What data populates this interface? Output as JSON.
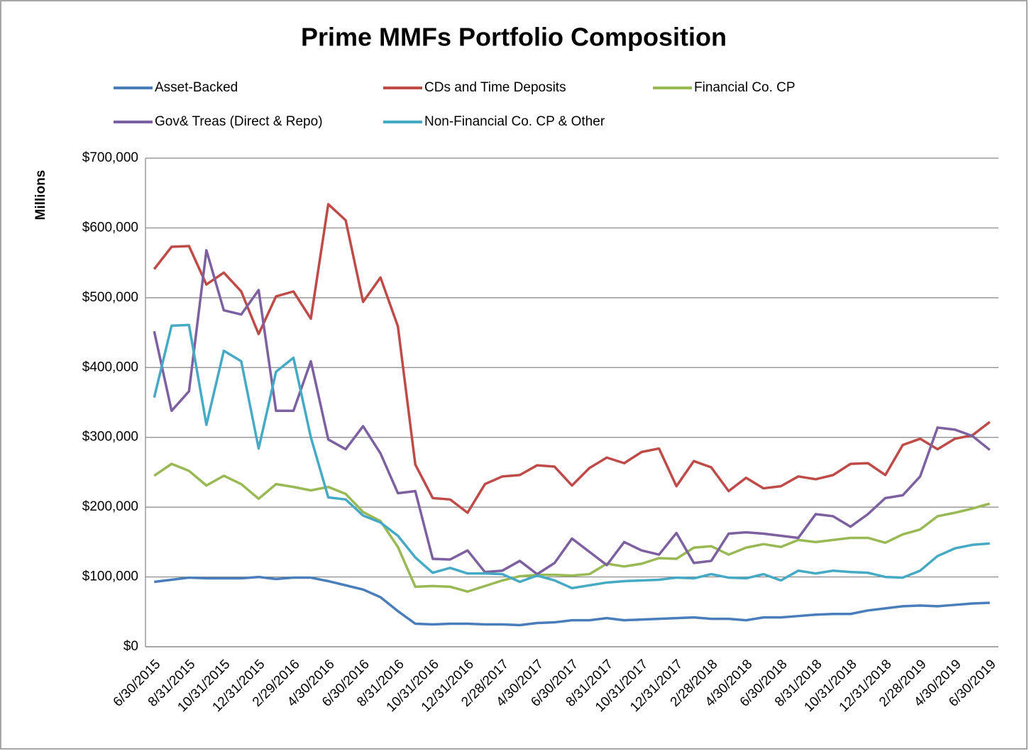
{
  "chart_data": {
    "type": "line",
    "title": "Prime MMFs Portfolio Composition",
    "y_label": "Millions",
    "categories": [
      "6/30/2015",
      null,
      "8/31/2015",
      null,
      "10/31/2015",
      null,
      "12/31/2015",
      null,
      "2/29/2016",
      null,
      "4/30/2016",
      null,
      "6/30/2016",
      null,
      "8/31/2016",
      null,
      "10/31/2016",
      null,
      "12/31/2016",
      null,
      "2/28/2017",
      null,
      "4/30/2017",
      null,
      "6/30/2017",
      null,
      "8/31/2017",
      null,
      "10/31/2017",
      null,
      "12/31/2017",
      null,
      "2/28/2018",
      null,
      "4/30/2018",
      null,
      "6/30/2018",
      null,
      "8/31/2018",
      null,
      "10/31/2018",
      null,
      "12/31/2018",
      null,
      "2/28/2019",
      null,
      "4/30/2019",
      null,
      "6/30/2019"
    ],
    "series": [
      {
        "name": "Asset-Backed",
        "color": "#4a7ebb",
        "values": [
          93000,
          96000,
          99000,
          98000,
          98000,
          98000,
          100000,
          97000,
          99000,
          99000,
          94000,
          88000,
          82000,
          71000,
          51000,
          33000,
          32000,
          33000,
          33000,
          32000,
          32000,
          31000,
          34000,
          35000,
          38000,
          38000,
          41000,
          38000,
          39000,
          40000,
          41000,
          42000,
          40000,
          40000,
          38000,
          42000,
          42000,
          44000,
          46000,
          47000,
          47000,
          52000,
          55000,
          58000,
          59000,
          58000,
          60000,
          62000,
          63000
        ]
      },
      {
        "name": "CDs and Time Deposits",
        "color": "#be4b48",
        "values": [
          541000,
          573000,
          574000,
          519000,
          536000,
          509000,
          448000,
          502000,
          509000,
          470000,
          634000,
          611000,
          494000,
          529000,
          459000,
          261000,
          213000,
          211000,
          192000,
          233000,
          244000,
          246000,
          260000,
          258000,
          231000,
          256000,
          271000,
          263000,
          279000,
          284000,
          230000,
          266000,
          257000,
          223000,
          242000,
          227000,
          230000,
          244000,
          240000,
          246000,
          262000,
          263000,
          246000,
          289000,
          298000,
          283000,
          298000,
          303000,
          322000
        ]
      },
      {
        "name": "Financial Co. CP",
        "color": "#98b954",
        "values": [
          245000,
          262000,
          252000,
          231000,
          245000,
          233000,
          212000,
          233000,
          229000,
          224000,
          229000,
          219000,
          193000,
          180000,
          143000,
          86000,
          87000,
          86000,
          79000,
          87000,
          95000,
          101000,
          103000,
          103000,
          102000,
          104000,
          119000,
          115000,
          119000,
          127000,
          126000,
          142000,
          144000,
          132000,
          142000,
          147000,
          143000,
          153000,
          150000,
          153000,
          156000,
          156000,
          149000,
          161000,
          168000,
          187000,
          192000,
          198000,
          205000
        ]
      },
      {
        "name": "Gov& Treas (Direct & Repo)",
        "color": "#7d60a0",
        "values": [
          452000,
          338000,
          366000,
          568000,
          482000,
          476000,
          511000,
          338000,
          338000,
          409000,
          297000,
          283000,
          316000,
          277000,
          220000,
          223000,
          126000,
          125000,
          138000,
          107000,
          109000,
          123000,
          104000,
          120000,
          155000,
          136000,
          117000,
          150000,
          138000,
          132000,
          163000,
          120000,
          123000,
          162000,
          164000,
          162000,
          159000,
          156000,
          190000,
          187000,
          172000,
          190000,
          213000,
          217000,
          244000,
          314000,
          311000,
          302000,
          282000
        ]
      },
      {
        "name": "Non-Financial Co. CP & Other",
        "color": "#46aac5",
        "values": [
          357000,
          460000,
          461000,
          318000,
          424000,
          409000,
          284000,
          394000,
          414000,
          300000,
          214000,
          211000,
          188000,
          178000,
          159000,
          128000,
          106000,
          113000,
          105000,
          105000,
          104000,
          93000,
          102000,
          95000,
          84000,
          88000,
          92000,
          94000,
          95000,
          96000,
          99000,
          98000,
          104000,
          99000,
          98000,
          104000,
          95000,
          109000,
          105000,
          109000,
          107000,
          106000,
          100000,
          99000,
          109000,
          130000,
          141000,
          146000,
          148000
        ]
      }
    ],
    "ylim": [
      0,
      700000
    ],
    "yticks": [
      {
        "value": 0,
        "label": "$0"
      },
      {
        "value": 100000,
        "label": "$100,000"
      },
      {
        "value": 200000,
        "label": "$200,000"
      },
      {
        "value": 300000,
        "label": "$300,000"
      },
      {
        "value": 400000,
        "label": "$400,000"
      },
      {
        "value": 500000,
        "label": "$500,000"
      },
      {
        "value": 600000,
        "label": "$600,000"
      },
      {
        "value": 700000,
        "label": "$700,000"
      }
    ],
    "grid": true,
    "legend": "top"
  }
}
